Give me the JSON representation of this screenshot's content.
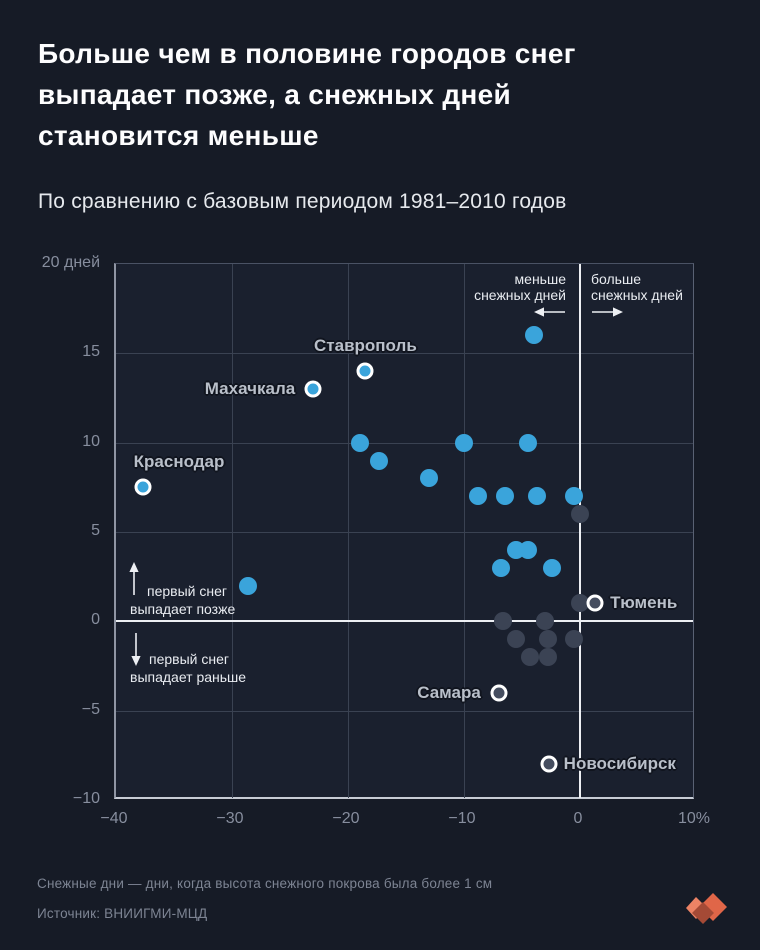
{
  "header": {
    "title_lines": [
      "Больше чем в половине городов снег",
      "выпадает позже, а снежных дней",
      "становится меньше"
    ],
    "subtitle": "По сравнению с базовым периодом 1981–2010 годов"
  },
  "chart_data": {
    "type": "scatter",
    "title": "Больше чем в половине городов снег выпадает позже, а снежных дней становится меньше",
    "subtitle": "По сравнению с базовым периодом 1981–2010 годов",
    "grid": true,
    "x_axis": {
      "lim": [
        -40,
        10
      ],
      "unit": "%",
      "ticks": [
        {
          "v": -40,
          "label": "−40"
        },
        {
          "v": -30,
          "label": "−30"
        },
        {
          "v": -20,
          "label": "−20"
        },
        {
          "v": -10,
          "label": "−10"
        },
        {
          "v": 0,
          "label": "0"
        },
        {
          "v": 10,
          "label": "10%"
        }
      ]
    },
    "y_axis": {
      "lim": [
        -10,
        20
      ],
      "unit": "дней",
      "ticks": [
        {
          "v": 20,
          "label": "20 дней"
        },
        {
          "v": 15,
          "label": "15"
        },
        {
          "v": 10,
          "label": "10"
        },
        {
          "v": 5,
          "label": "5"
        },
        {
          "v": 0,
          "label": "0"
        },
        {
          "v": -5,
          "label": "−5"
        },
        {
          "v": -10,
          "label": "−10"
        }
      ]
    },
    "series": [
      {
        "name": "highlighted",
        "color": "#3aa4db",
        "points": [
          {
            "x": -37.7,
            "y": 7.5,
            "city": "Краснодар",
            "ring": true,
            "label_side": "above-left"
          },
          {
            "x": -23,
            "y": 13,
            "city": "Махачкала",
            "ring": true,
            "label_side": "left"
          },
          {
            "x": -18.5,
            "y": 14,
            "city": "Ставрополь",
            "ring": true,
            "label_side": "above"
          },
          {
            "x": -28.6,
            "y": 2
          },
          {
            "x": -19,
            "y": 10
          },
          {
            "x": -17.3,
            "y": 9
          },
          {
            "x": -13,
            "y": 8
          },
          {
            "x": -10,
            "y": 10
          },
          {
            "x": -4.5,
            "y": 10
          },
          {
            "x": -4,
            "y": 16
          },
          {
            "x": -8.8,
            "y": 7
          },
          {
            "x": -6.5,
            "y": 7
          },
          {
            "x": -3.7,
            "y": 7
          },
          {
            "x": -0.5,
            "y": 7
          },
          {
            "x": -5.5,
            "y": 4
          },
          {
            "x": -4.5,
            "y": 4
          },
          {
            "x": -6.8,
            "y": 3
          },
          {
            "x": -2.4,
            "y": 3
          }
        ]
      },
      {
        "name": "muted",
        "color": "#3b4354",
        "points": [
          {
            "x": 0,
            "y": 6
          },
          {
            "x": 0,
            "y": 1
          },
          {
            "x": -6.6,
            "y": 0
          },
          {
            "x": -3,
            "y": 0
          },
          {
            "x": -5.5,
            "y": -1
          },
          {
            "x": -2.8,
            "y": -1
          },
          {
            "x": -0.5,
            "y": -1
          },
          {
            "x": -4.3,
            "y": -2
          },
          {
            "x": -2.8,
            "y": -2
          },
          {
            "x": 1.3,
            "y": 1,
            "city": "Тюмень",
            "ring": true,
            "label_side": "right"
          },
          {
            "x": -7,
            "y": -4,
            "city": "Самара",
            "ring": true,
            "label_side": "left"
          },
          {
            "x": -2.7,
            "y": -8,
            "city": "Новосибирск",
            "ring": true,
            "label_side": "right"
          }
        ]
      }
    ],
    "annotations": {
      "less": [
        "меньше",
        "снежных дней"
      ],
      "more": [
        "больше",
        "снежных дней"
      ],
      "later": [
        "первый снег",
        "выпадает позже"
      ],
      "earlier": [
        "первый снег",
        "выпадает раньше"
      ]
    }
  },
  "colors": {
    "background": "#161b26",
    "plot_background": "#1a202e",
    "accent_blue": "#3aa4db",
    "muted_gray": "#3b4354",
    "zero_line": "#edeff3",
    "gridline": "#3a4252",
    "logo_coral": "#e06648"
  },
  "footer": {
    "note": "Снежные дни — дни, когда высота снежного покрова была более 1 см",
    "source": "Источник: ВНИИГМИ-МЦД"
  }
}
